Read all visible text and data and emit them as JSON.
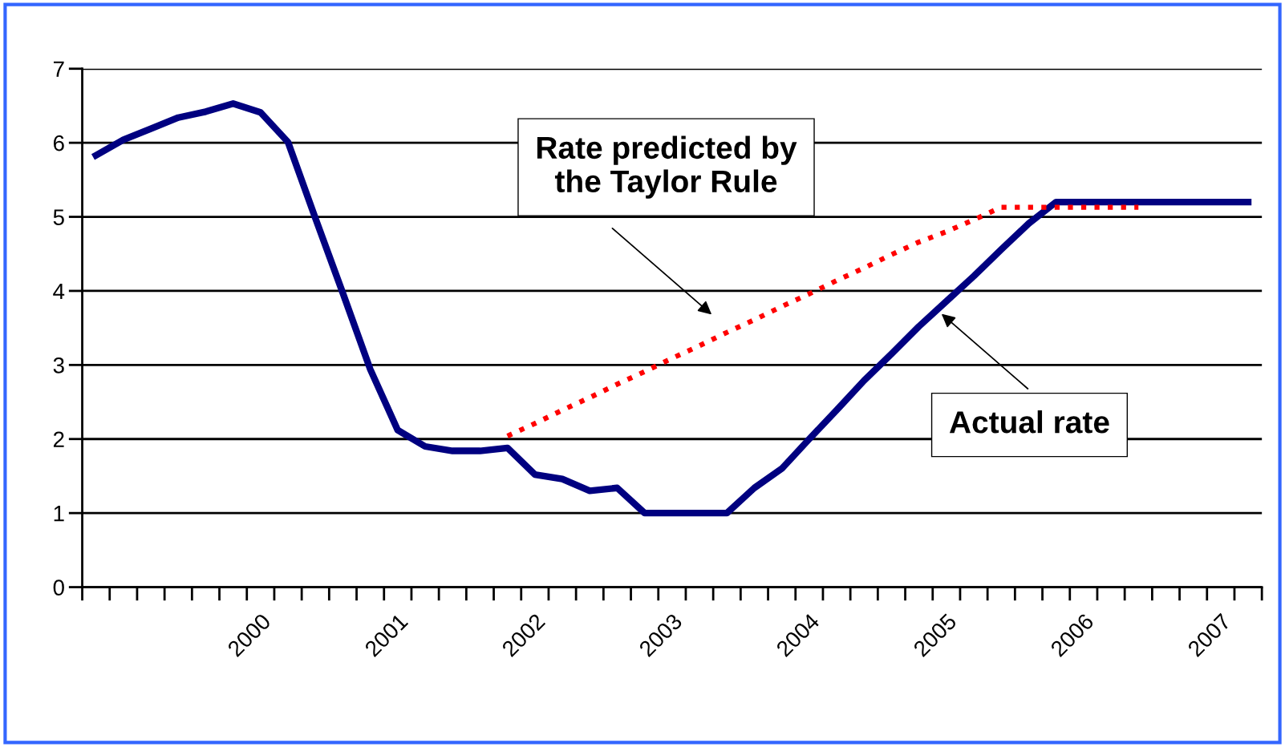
{
  "chart_data": {
    "type": "line",
    "categories": [
      null,
      null,
      null,
      null,
      null,
      null,
      "2000",
      null,
      null,
      null,
      null,
      "2001",
      null,
      null,
      null,
      null,
      "2002",
      null,
      null,
      null,
      null,
      "2003",
      null,
      null,
      null,
      null,
      "2004",
      null,
      null,
      null,
      null,
      "2005",
      null,
      null,
      null,
      null,
      "2006",
      null,
      null,
      null,
      null,
      "2007",
      null
    ],
    "ylim": [
      0,
      7
    ],
    "yticks": [
      0,
      1,
      2,
      3,
      4,
      5,
      6,
      7
    ],
    "grid": "y",
    "legend": false,
    "series": [
      {
        "name": "Actual rate",
        "color": "#000080",
        "line_style": "solid",
        "values": [
          5.83,
          6.04,
          6.19,
          6.34,
          6.42,
          6.53,
          6.41,
          6.01,
          4.98,
          3.97,
          2.94,
          2.12,
          1.9,
          1.84,
          1.84,
          1.88,
          1.52,
          1.46,
          1.3,
          1.34,
          1.0,
          1.0,
          1.0,
          1.0,
          1.34,
          1.6,
          2.0,
          2.39,
          2.79,
          3.15,
          3.52,
          3.86,
          4.2,
          4.56,
          4.91,
          5.2,
          5.2,
          5.2,
          5.2,
          5.2,
          5.2,
          5.2,
          5.2
        ]
      },
      {
        "name": "Rate predicted by\nthe Taylor Rule",
        "color": "#ff0000",
        "line_style": "dotted",
        "values": [
          null,
          null,
          null,
          null,
          null,
          null,
          null,
          null,
          null,
          null,
          null,
          null,
          null,
          null,
          null,
          2.04,
          2.21,
          2.39,
          2.56,
          2.74,
          2.91,
          3.09,
          3.26,
          3.44,
          3.61,
          3.79,
          3.96,
          4.14,
          4.31,
          4.49,
          4.66,
          4.8,
          4.96,
          5.13,
          5.13,
          5.13,
          5.13,
          5.13,
          5.13,
          null,
          null,
          null,
          null
        ]
      }
    ]
  }
}
